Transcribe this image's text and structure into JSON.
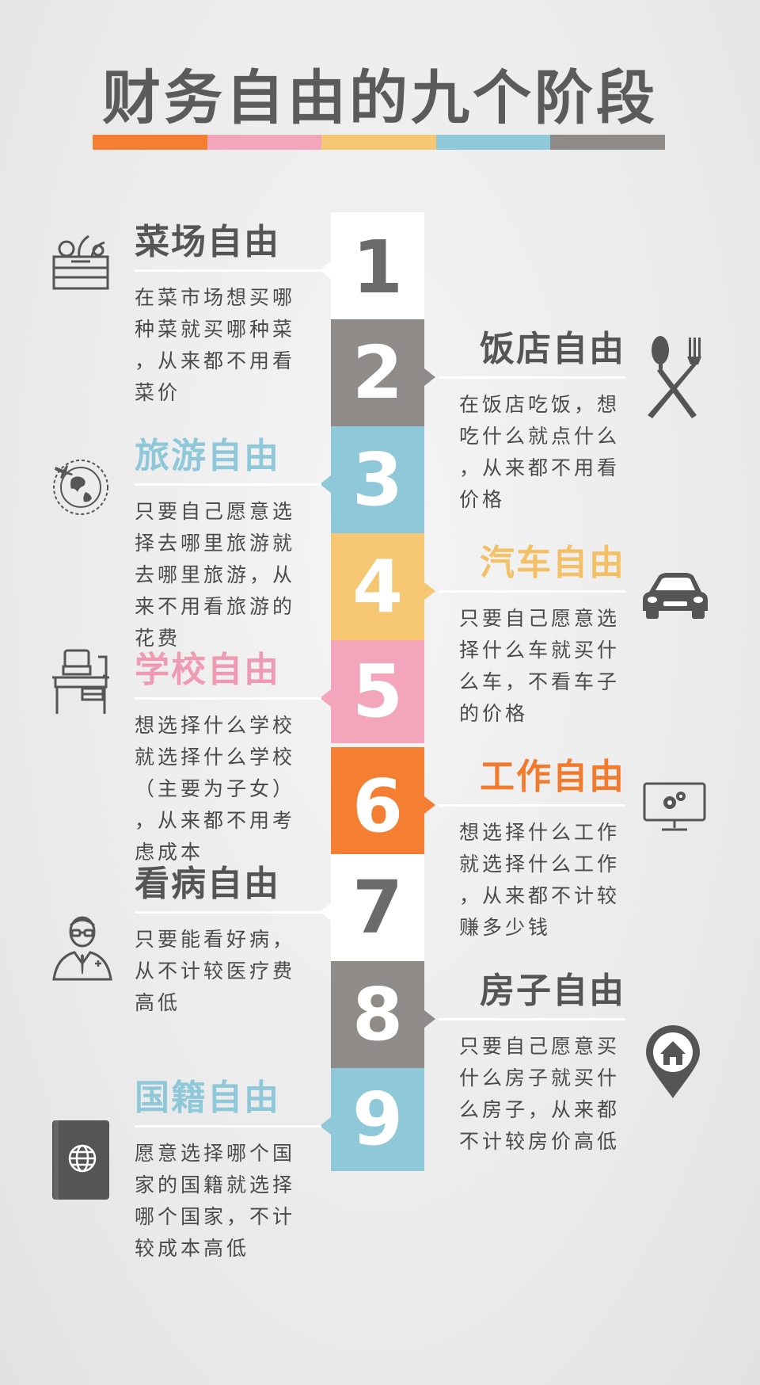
{
  "title": "财务自由的九个阶段",
  "title_bar_colors": [
    "#f47f32",
    "#f2a5bb",
    "#f6c772",
    "#8fc8d9",
    "#8e8b88"
  ],
  "stages": [
    {
      "num": "1",
      "title": "菜场自由",
      "desc": "在菜市场想买哪\n种菜就买哪种菜\n，从来都不用看\n菜价",
      "side": "left",
      "block_color": "#ffffff",
      "num_color": "#6a6a6a",
      "title_color": "#555555",
      "icon": "vegetable-basket-icon"
    },
    {
      "num": "2",
      "title": "饭店自由",
      "desc": "在饭店吃饭，想\n吃什么就点什么\n，从来都不用看\n价格",
      "side": "right",
      "block_color": "#8e8b88",
      "num_color": "#ffffff",
      "title_color": "#555555",
      "icon": "fork-knife-icon"
    },
    {
      "num": "3",
      "title": "旅游自由",
      "desc": "只要自己愿意选\n择去哪里旅游就\n去哪里旅游，从\n来不用看旅游的\n花费",
      "side": "left",
      "block_color": "#8fc8d9",
      "num_color": "#ffffff",
      "title_color": "#8fc8d9",
      "icon": "globe-plane-icon"
    },
    {
      "num": "4",
      "title": "汽车自由",
      "desc": "只要自己愿意选\n择什么车就买什\n么车，不看车子\n的价格",
      "side": "right",
      "block_color": "#f6c772",
      "num_color": "#ffffff",
      "title_color": "#f3c065",
      "icon": "car-icon"
    },
    {
      "num": "5",
      "title": "学校自由",
      "desc": "想选择什么学校\n就选择什么学校\n（主要为子女）\n，从来都不用考\n虑成本",
      "side": "left",
      "block_color": "#f2a5bb",
      "num_color": "#ffffff",
      "title_color": "#ef9ab3",
      "icon": "school-desk-icon"
    },
    {
      "num": "6",
      "title": "工作自由",
      "desc": "想选择什么工作\n就选择什么工作\n，从来都不计较\n赚多少钱",
      "side": "right",
      "block_color": "#f47f32",
      "num_color": "#ffffff",
      "title_color": "#f27a2c",
      "icon": "computer-gears-icon"
    },
    {
      "num": "7",
      "title": "看病自由",
      "desc": "只要能看好病，\n从不计较医疗费\n高低",
      "side": "left",
      "block_color": "#ffffff",
      "num_color": "#6a6a6a",
      "title_color": "#555555",
      "icon": "doctor-icon"
    },
    {
      "num": "8",
      "title": "房子自由",
      "desc": "只要自己愿意买\n什么房子就买什\n么房子，从来都\n不计较房价高低",
      "side": "right",
      "block_color": "#8e8b88",
      "num_color": "#ffffff",
      "title_color": "#555555",
      "icon": "house-pin-icon"
    },
    {
      "num": "9",
      "title": "国籍自由",
      "desc": "愿意选择哪个国\n家的国籍就选择\n哪个国家，不计\n较成本高低",
      "side": "left",
      "block_color": "#8fc8d9",
      "num_color": "#ffffff",
      "title_color": "#8fc8d9",
      "icon": "passport-icon"
    }
  ]
}
